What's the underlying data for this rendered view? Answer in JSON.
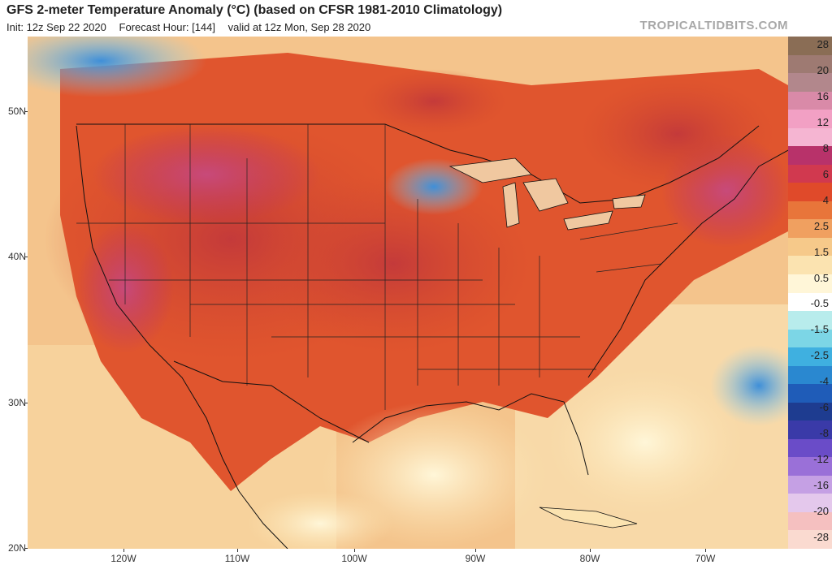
{
  "header": {
    "title": "GFS 2-meter Temperature Anomaly (°C) (based on CFSR 1981-2010 Climatology)",
    "init": "Init: 12z Sep 22 2020",
    "forecast_hour": "Forecast Hour: [144]",
    "valid": "valid at 12z Mon, Sep 28 2020",
    "credit": "TROPICALTIDBITS.COM"
  },
  "axes": {
    "latitudes": [
      "50N",
      "40N",
      "30N",
      "20N"
    ],
    "longitudes": [
      "120W",
      "110W",
      "100W",
      "90W",
      "80W",
      "70W"
    ]
  },
  "colorbar": {
    "labels": [
      "28",
      "20",
      "16",
      "12",
      "8",
      "6",
      "4",
      "2.5",
      "1.5",
      "0.5",
      "-0.5",
      "-1.5",
      "-2.5",
      "-4",
      "-6",
      "-8",
      "-12",
      "-16",
      "-20",
      "-28"
    ],
    "colors": [
      "#8a6d55",
      "#9e7a72",
      "#b2878c",
      "#d98aa8",
      "#f2a0c4",
      "#f5b5d2",
      "#b8326a",
      "#d1394f",
      "#e04a2a",
      "#e8753a",
      "#f0a060",
      "#f6c98a",
      "#fbe3b0",
      "#fff6d8",
      "#ffffff",
      "#b8ecec",
      "#7cd6e6",
      "#3fb0e0",
      "#2a88d0",
      "#1f5cb8",
      "#1e3c90",
      "#3a3aa8",
      "#6a4cc8",
      "#9a70d8",
      "#c5a0e4",
      "#e4c8ec",
      "#f5c0c0",
      "#fadad0"
    ]
  }
}
